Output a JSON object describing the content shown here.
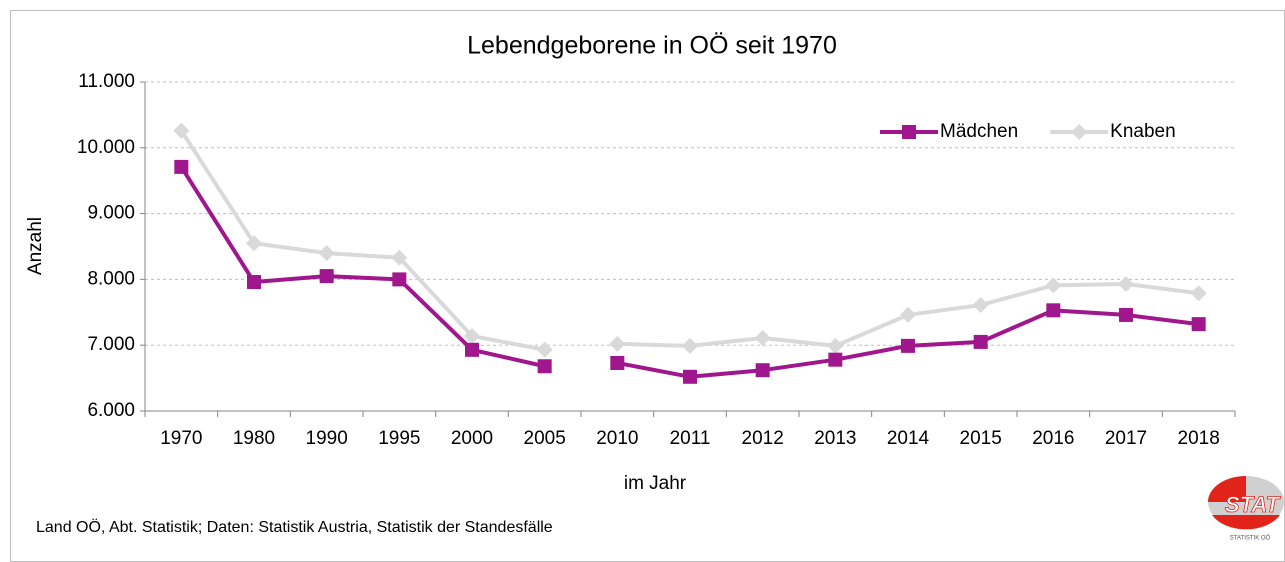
{
  "chart_data": {
    "type": "line",
    "title": "Lebendgeborene in OÖ seit 1970",
    "x_label": "im Jahr",
    "y_label": "Anzahl",
    "source": "Land OÖ, Abt. Statistik; Daten: Statistik Austria, Statistik der Standesfälle",
    "logo": {
      "text": "STAT",
      "subtext": "STATISTIK OÖ"
    },
    "categories": [
      "1970",
      "1980",
      "1990",
      "1995",
      "2000",
      "2005",
      "2010",
      "2011",
      "2012",
      "2013",
      "2014",
      "2015",
      "2016",
      "2017",
      "2018"
    ],
    "gap_after": "2005",
    "series": [
      {
        "name": "Mädchen",
        "color": "#a0168c",
        "marker": "square",
        "values": [
          9710,
          7960,
          8050,
          8000,
          6930,
          6680,
          6730,
          6520,
          6620,
          6780,
          6990,
          7050,
          7530,
          7460,
          7320
        ]
      },
      {
        "name": "Knaben",
        "color": "#d9d9d9",
        "marker": "diamond",
        "values": [
          10260,
          8550,
          8400,
          8330,
          7140,
          6930,
          7020,
          6990,
          7110,
          6990,
          7460,
          7610,
          7910,
          7930,
          7790
        ]
      }
    ],
    "ylim": [
      6000,
      11000
    ],
    "yticks": [
      {
        "value": 6000,
        "label": "6.000"
      },
      {
        "value": 7000,
        "label": "7.000"
      },
      {
        "value": 8000,
        "label": "8.000"
      },
      {
        "value": 9000,
        "label": "9.000"
      },
      {
        "value": 10000,
        "label": "10.000"
      },
      {
        "value": 11000,
        "label": "11.000"
      }
    ],
    "grid": true,
    "legend": "top-right"
  }
}
